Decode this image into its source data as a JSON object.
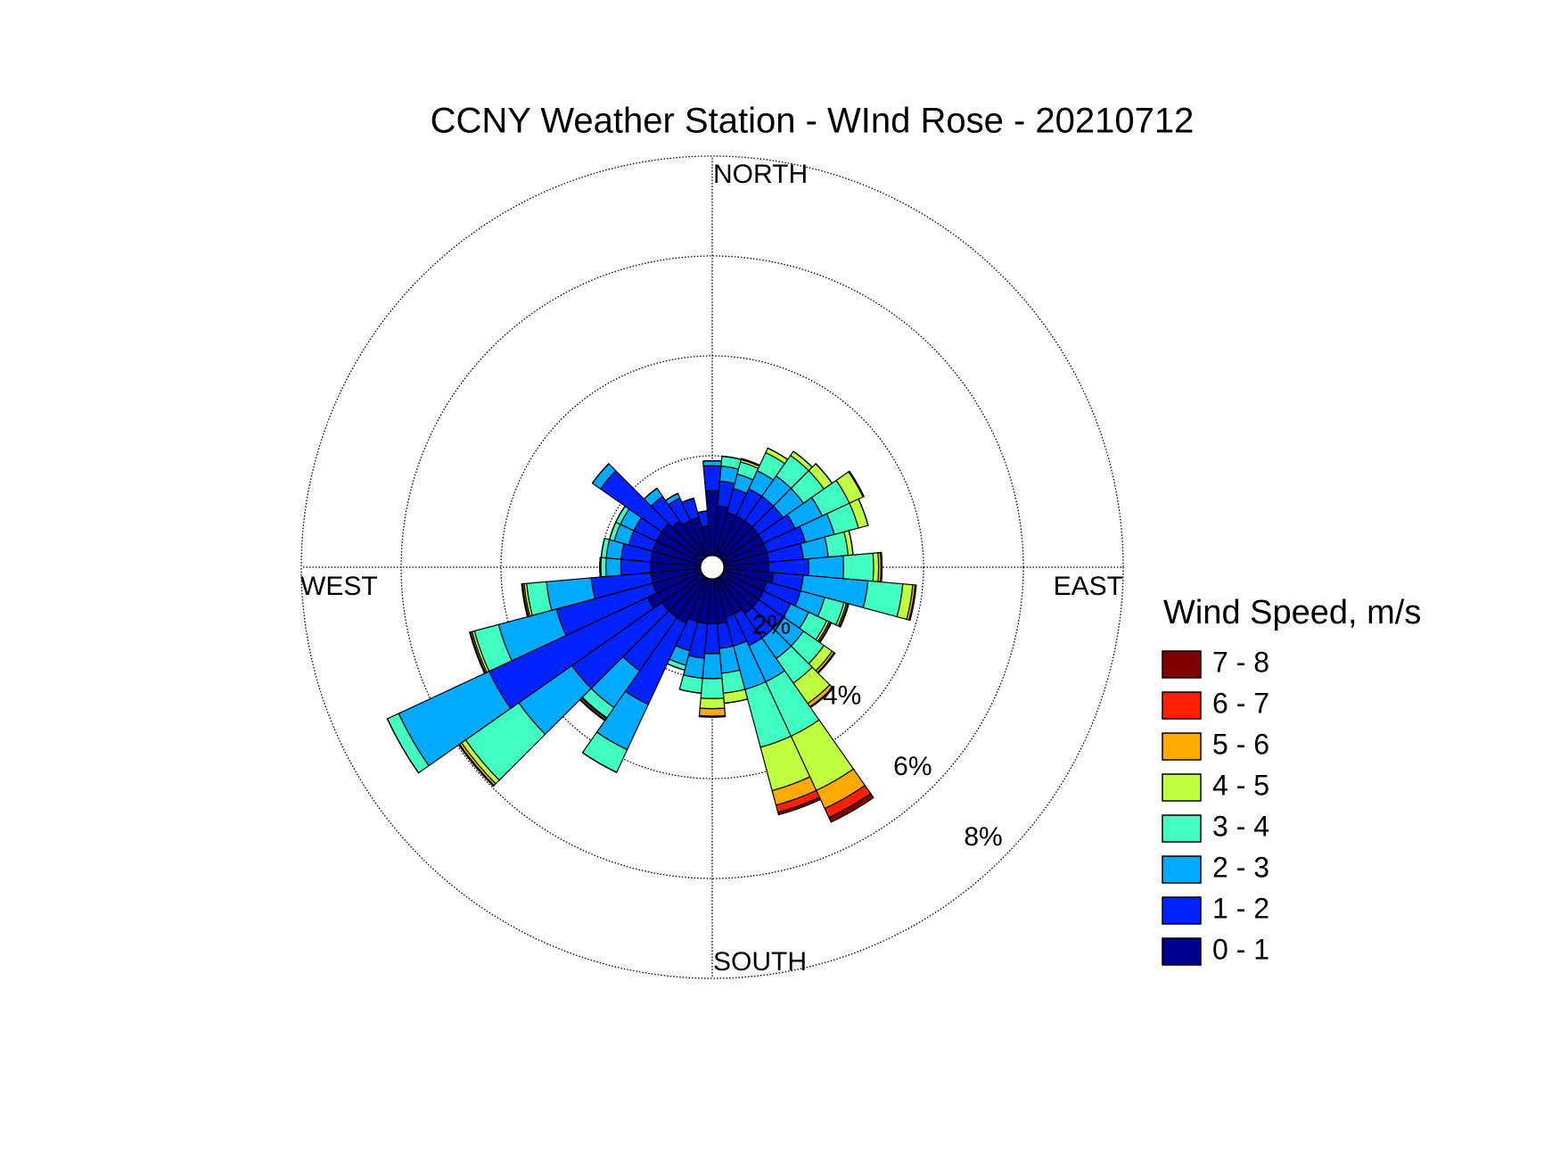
{
  "chart_data": {
    "type": "windrose",
    "title": "CCNY Weather Station - WInd Rose - 20210712",
    "direction_labels": {
      "north": "NORTH",
      "east": "EAST",
      "south": "SOUTH",
      "west": "WEST"
    },
    "legend_title": "Wind Speed, m/s",
    "rlim": [
      0,
      8
    ],
    "rticks": [
      {
        "value": 2,
        "label": "2%"
      },
      {
        "value": 4,
        "label": "4%"
      },
      {
        "value": 6,
        "label": "6%"
      },
      {
        "value": 8,
        "label": "8%"
      }
    ],
    "grid": true,
    "series": [
      {
        "name": "0 - 1",
        "color": "#00008f",
        "values": [
          1.3,
          1.0,
          0.9,
          0.9,
          0.9,
          0.9,
          0.9,
          0.9,
          0.9,
          0.9,
          1.0,
          0.9,
          0.9,
          0.9,
          0.9,
          0.8,
          0.8,
          0.9,
          0.9,
          0.9,
          0.9,
          1.0,
          1.0,
          1.0,
          1.2,
          1.0,
          1.0,
          1.0,
          1.0,
          1.0,
          1.0,
          1.0,
          0.9,
          0.8,
          0.8,
          0.6
        ]
      },
      {
        "name": "1 - 2",
        "color": "#0022ff",
        "values": [
          0.5,
          0.5,
          0.5,
          0.6,
          0.6,
          0.6,
          0.7,
          0.8,
          0.7,
          0.8,
          0.6,
          0.7,
          0.6,
          0.6,
          0.6,
          0.7,
          0.6,
          0.5,
          0.6,
          0.7,
          0.6,
          1.8,
          1.3,
          2.2,
          3.5,
          2.0,
          1.2,
          0.6,
          0.6,
          0.5,
          0.5,
          1.5,
          0.6,
          0.5,
          0.4,
          0.3
        ]
      },
      {
        "name": "2 - 3",
        "color": "#00aaff",
        "values": [
          0.1,
          0.3,
          0.3,
          0.4,
          0.5,
          0.5,
          0.6,
          0.6,
          0.5,
          0.7,
          1.3,
          0.5,
          0.4,
          0.5,
          0.5,
          0.8,
          0.9,
          0.5,
          0.5,
          0.4,
          0.3,
          1.0,
          0.9,
          1.3,
          2.0,
          1.2,
          0.9,
          0.3,
          0.3,
          0.3,
          0.3,
          0.2,
          0.2,
          0.1,
          0,
          0
        ]
      },
      {
        "name": "3 - 4",
        "color": "#40ffc0",
        "values": [
          0,
          0.2,
          0.25,
          0.4,
          0.5,
          0.5,
          0.6,
          0.5,
          0.4,
          0.6,
          0.7,
          0.4,
          0.4,
          0.5,
          0.6,
          1.2,
          1.2,
          0.4,
          0.4,
          0.3,
          0.1,
          0.5,
          0.25,
          1.3,
          0.25,
          0.5,
          0.4,
          0.1,
          0.1,
          0.1,
          0.1,
          0,
          0,
          0,
          0,
          0
        ]
      },
      {
        "name": "4 - 5",
        "color": "#c0ff40",
        "values": [
          0,
          0,
          0.05,
          0.1,
          0.1,
          0.2,
          0.3,
          0.2,
          0.1,
          0.1,
          0.2,
          0.05,
          0.05,
          0.2,
          0.5,
          1.2,
          0.9,
          0.2,
          0.2,
          0,
          0,
          0,
          0.02,
          0.1,
          0,
          0.05,
          0.05,
          0.02,
          0,
          0,
          0,
          0,
          0,
          0,
          0,
          0
        ]
      },
      {
        "name": "5 - 6",
        "color": "#ffaa00",
        "values": [
          0,
          0,
          0.02,
          0,
          0,
          0,
          0.02,
          0,
          0,
          0.05,
          0.05,
          0.03,
          0.03,
          0.05,
          0.08,
          0.4,
          0.3,
          0,
          0.15,
          0,
          0,
          0,
          0.03,
          0.05,
          0,
          0.03,
          0.03,
          0,
          0,
          0,
          0,
          0,
          0,
          0,
          0,
          0
        ]
      },
      {
        "name": "6 - 7",
        "color": "#ff2000",
        "values": [
          0,
          0,
          0,
          0,
          0,
          0,
          0,
          0,
          0,
          0.02,
          0.02,
          0.02,
          0.02,
          0.02,
          0.02,
          0.2,
          0.15,
          0,
          0.02,
          0,
          0,
          0,
          0.02,
          0.02,
          0,
          0.02,
          0.02,
          0,
          0,
          0,
          0,
          0,
          0,
          0,
          0,
          0
        ]
      },
      {
        "name": "7 - 8",
        "color": "#800000",
        "values": [
          0,
          0,
          0,
          0,
          0,
          0,
          0,
          0,
          0,
          0,
          0,
          0,
          0,
          0,
          0,
          0.1,
          0.05,
          0,
          0,
          0,
          0,
          0,
          0,
          0,
          0,
          0,
          0,
          0,
          0,
          0,
          0,
          0,
          0,
          0,
          0,
          0
        ]
      }
    ]
  }
}
